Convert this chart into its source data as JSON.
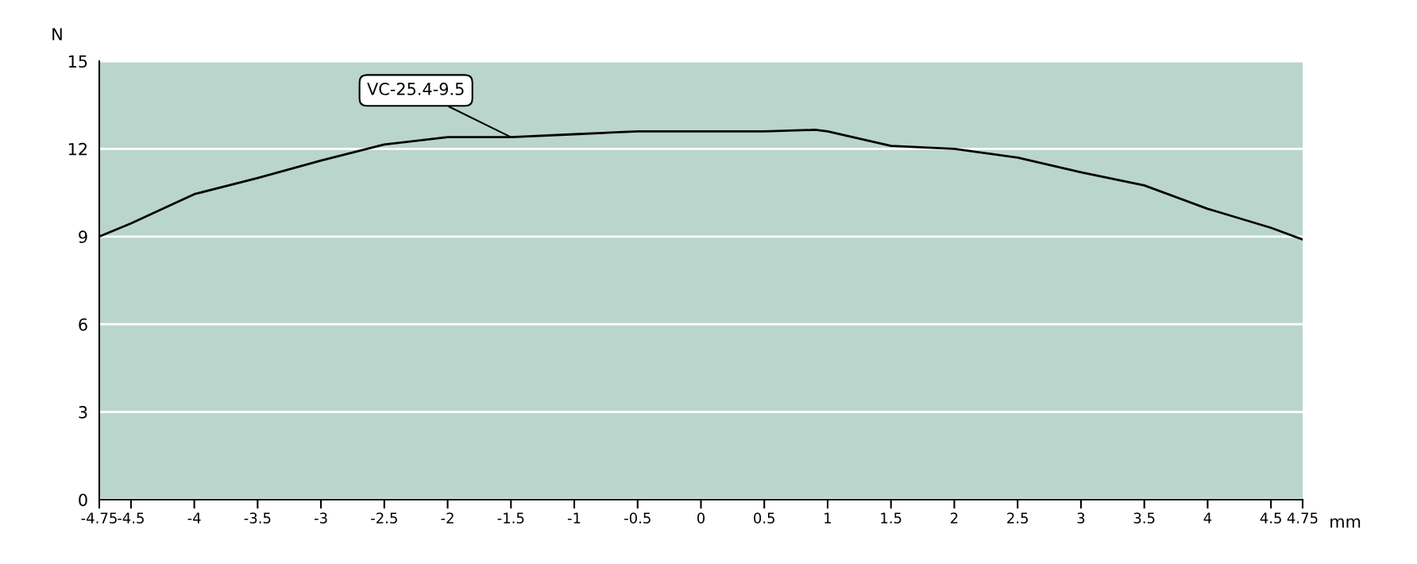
{
  "chart_data": {
    "type": "line",
    "xlabel": "mm",
    "ylabel": "N",
    "x": [
      -4.75,
      -4.5,
      -4,
      -3.5,
      -3,
      -2.5,
      -2,
      -1.5,
      -1,
      -0.5,
      0,
      0.5,
      0.9,
      1,
      1.5,
      2,
      2.5,
      3,
      3.5,
      4,
      4.5,
      4.75
    ],
    "series": [
      {
        "color": "#000000",
        "values": [
          9.0,
          9.45,
          10.45,
          11.0,
          11.6,
          12.15,
          12.4,
          12.4,
          12.5,
          12.6,
          12.6,
          12.6,
          12.65,
          12.6,
          12.1,
          12.0,
          11.7,
          11.2,
          10.75,
          9.95,
          9.3,
          8.9
        ]
      }
    ],
    "xlim": [
      -4.75,
      4.75
    ],
    "xticks": [
      -4.75,
      -4.5,
      -4,
      -3.5,
      -3,
      -2.5,
      -2,
      -1.5,
      -1,
      -0.5,
      0,
      0.5,
      1,
      1.5,
      2,
      2.5,
      3,
      3.5,
      4,
      4.5,
      4.75
    ],
    "ylim": [
      0,
      15
    ],
    "yticks": [
      0,
      3,
      6,
      9,
      12,
      15
    ],
    "grid": "y",
    "marker": "none",
    "line_style": "solid",
    "annotations": [
      {
        "text": "VC-25.4-9.5",
        "x": -1.5,
        "y": 12.4
      }
    ]
  }
}
